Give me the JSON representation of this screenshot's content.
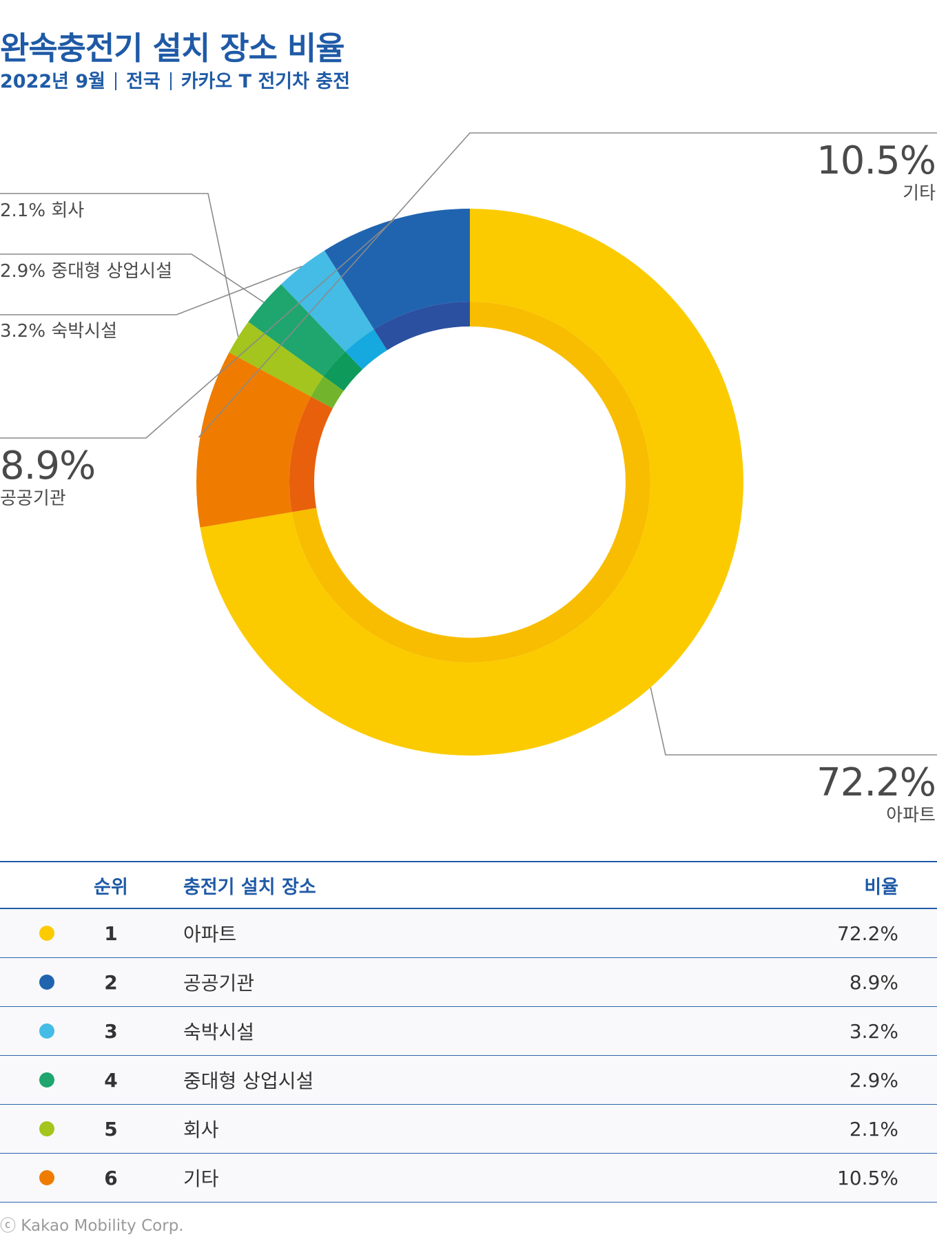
{
  "title": "완속충전기 설치 장소 비율",
  "subtitle": {
    "date": "2022년 9월",
    "region": "전국",
    "source": "카카오 T 전기차 충전"
  },
  "chart_data": {
    "type": "pie",
    "donut": true,
    "categories": [
      "아파트",
      "기타",
      "회사",
      "중대형 상업시설",
      "숙박시설",
      "공공기관"
    ],
    "values": [
      72.2,
      10.5,
      2.1,
      2.9,
      3.2,
      8.9
    ],
    "value_labels": [
      "72.2%",
      "10.5%",
      "2.1%",
      "2.9%",
      "3.2%",
      "8.9%"
    ],
    "colors": [
      "#fbcb00",
      "#ef7c00",
      "#a3c51d",
      "#1ea66e",
      "#44bce5",
      "#2064b0"
    ],
    "inner_colors": [
      "#f8bd00",
      "#e8600c",
      "#72b52c",
      "#0e9a5a",
      "#16a9df",
      "#2c50a0"
    ],
    "legend": "leader-line labels"
  },
  "table": {
    "headers": {
      "rank": "순위",
      "place": "충전기 설치 장소",
      "ratio": "비율"
    },
    "rows": [
      {
        "rank": "1",
        "place": "아파트",
        "ratio": "72.2%",
        "color": "#fbcb00"
      },
      {
        "rank": "2",
        "place": "공공기관",
        "ratio": "8.9%",
        "color": "#2064b0"
      },
      {
        "rank": "3",
        "place": "숙박시설",
        "ratio": "3.2%",
        "color": "#44bce5"
      },
      {
        "rank": "4",
        "place": "중대형 상업시설",
        "ratio": "2.9%",
        "color": "#1ea66e"
      },
      {
        "rank": "5",
        "place": "회사",
        "ratio": "2.1%",
        "color": "#a3c51d"
      },
      {
        "rank": "6",
        "place": "기타",
        "ratio": "10.5%",
        "color": "#ef7c00"
      }
    ]
  },
  "footer": "ⓒ Kakao Mobility Corp."
}
